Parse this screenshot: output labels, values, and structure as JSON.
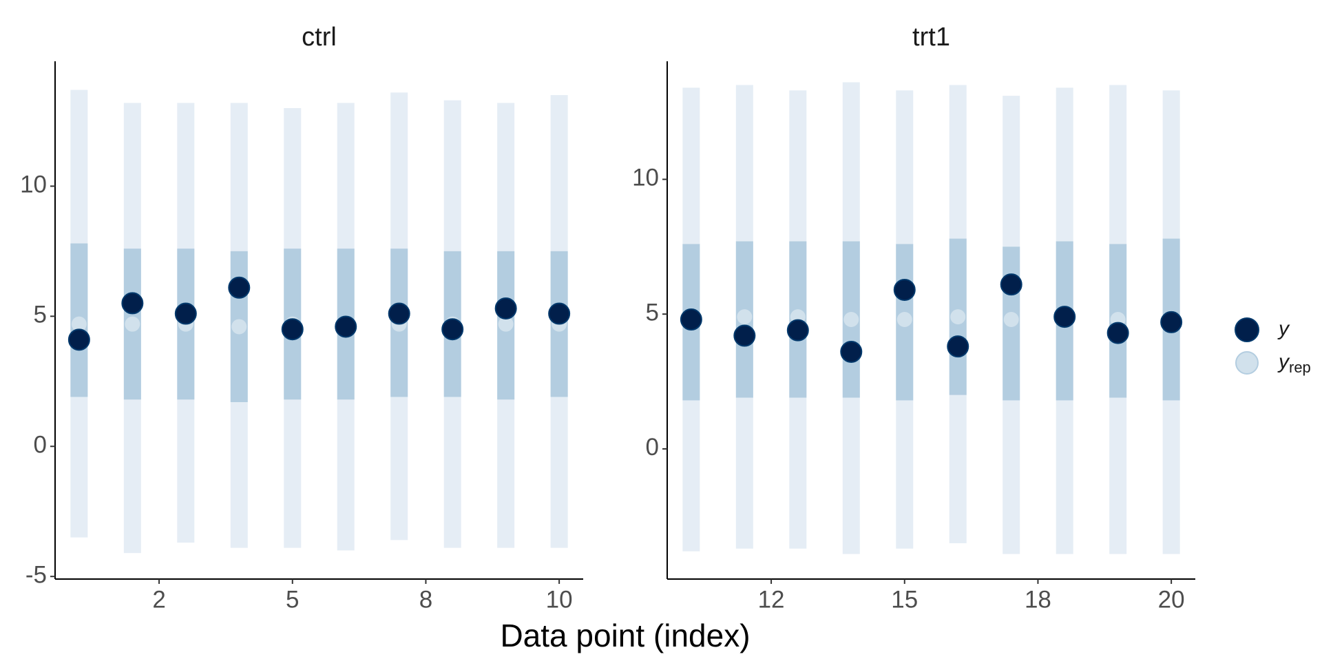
{
  "chart_data": {
    "type": "interval",
    "xlabel": "Data point (index)",
    "series": [
      {
        "name": "y",
        "color": "#011f4b"
      },
      {
        "name": "y",
        "subscript": "rep",
        "color": "#d1e1ec"
      }
    ],
    "outer_color": "#e5edf5",
    "inner_color": "#b3cde0",
    "panels": [
      {
        "title": "ctrl",
        "x": [
          1,
          2,
          3,
          4,
          5,
          6,
          7,
          8,
          9,
          10
        ],
        "xlim": [
          0.55,
          10.45
        ],
        "xticks": [
          {
            "value": 2.5,
            "label": "2"
          },
          5,
          {
            "value": 7.5,
            "label": "8"
          },
          10
        ],
        "ylim": [
          -5.1,
          14.8
        ],
        "yticks": [
          -5,
          0,
          5,
          10
        ],
        "y": [
          4.1,
          5.5,
          5.1,
          6.1,
          4.5,
          4.6,
          5.1,
          4.5,
          5.3,
          5.1
        ],
        "yrep_median": [
          4.7,
          4.7,
          4.7,
          4.6,
          4.7,
          4.7,
          4.7,
          4.7,
          4.7,
          4.7
        ],
        "outer_low": [
          -3.5,
          -4.1,
          -3.7,
          -3.9,
          -3.9,
          -4.0,
          -3.6,
          -3.9,
          -3.9,
          -3.9
        ],
        "outer_high": [
          13.7,
          13.2,
          13.2,
          13.2,
          13.0,
          13.2,
          13.6,
          13.3,
          13.2,
          13.5
        ],
        "inner_low": [
          1.9,
          1.8,
          1.8,
          1.7,
          1.8,
          1.8,
          1.9,
          1.9,
          1.8,
          1.9
        ],
        "inner_high": [
          7.8,
          7.6,
          7.6,
          7.5,
          7.6,
          7.6,
          7.6,
          7.5,
          7.5,
          7.5
        ]
      },
      {
        "title": "trt1",
        "x": [
          11,
          12,
          13,
          14,
          15,
          16,
          17,
          18,
          19,
          20
        ],
        "xlim": [
          10.55,
          20.45
        ],
        "xticks": [
          {
            "value": 12.5,
            "label": "12"
          },
          15,
          {
            "value": 17.5,
            "label": "18"
          },
          20
        ],
        "ylim": [
          -4.83,
          14.38
        ],
        "yticks": [
          0,
          5,
          10
        ],
        "y": [
          4.8,
          4.2,
          4.4,
          3.6,
          5.9,
          3.8,
          6.1,
          4.9,
          4.3,
          4.7
        ],
        "yrep_median": [
          4.8,
          4.9,
          4.9,
          4.8,
          4.8,
          4.9,
          4.8,
          4.8,
          4.8,
          4.8
        ],
        "outer_low": [
          -3.8,
          -3.7,
          -3.7,
          -3.9,
          -3.7,
          -3.5,
          -3.9,
          -3.9,
          -3.9,
          -3.9
        ],
        "outer_high": [
          13.4,
          13.5,
          13.3,
          13.6,
          13.3,
          13.5,
          13.1,
          13.4,
          13.5,
          13.3
        ],
        "inner_low": [
          1.8,
          1.9,
          1.9,
          1.9,
          1.8,
          2.0,
          1.8,
          1.8,
          1.9,
          1.8
        ],
        "inner_high": [
          7.6,
          7.7,
          7.7,
          7.7,
          7.6,
          7.8,
          7.5,
          7.7,
          7.6,
          7.8
        ]
      }
    ]
  }
}
